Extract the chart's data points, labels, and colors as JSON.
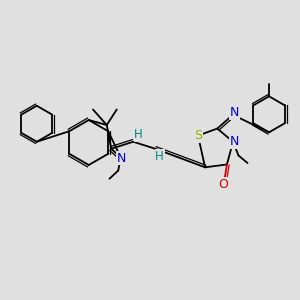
{
  "bg_color": "#e0e0e0",
  "bond_color": "#000000",
  "N_color": "#0000cc",
  "S_color": "#aaaa00",
  "O_color": "#cc0000",
  "H_color": "#008888",
  "lw": 1.3,
  "lw2": 0.9,
  "figsize": [
    3.0,
    3.0
  ],
  "dpi": 100,
  "xlim": [
    0,
    12
  ],
  "ylim": [
    0,
    10
  ]
}
